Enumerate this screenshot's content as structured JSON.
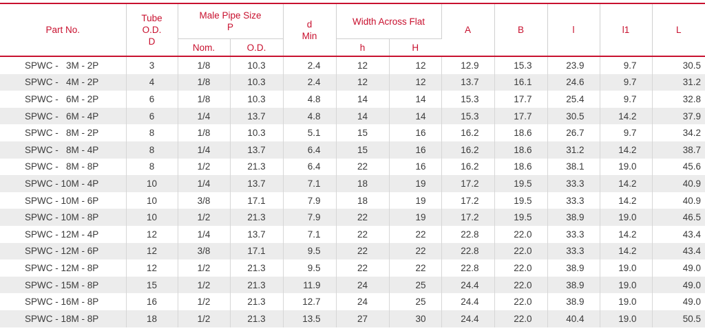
{
  "headers": {
    "part_no": "Part No.",
    "tube_od": [
      "Tube",
      "O.D.",
      "D"
    ],
    "male_pipe_size": [
      "Male Pipe Size",
      "P"
    ],
    "nom": "Nom.",
    "od": "O.D.",
    "d_min": [
      "d",
      "Min"
    ],
    "width_across_flat": "Width Across Flat",
    "h_small": "h",
    "h_large": "H",
    "a": "A",
    "b": "B",
    "l_small": "l",
    "l1": "l1",
    "l_large": "L"
  },
  "rows": [
    {
      "part": "SPWC -   3M - 2P",
      "tube_od": "3",
      "nom": "1/8",
      "od": "10.3",
      "d": "2.4",
      "h": "12",
      "H": "12",
      "A": "12.9",
      "B": "15.3",
      "l": "23.9",
      "l1": "9.7",
      "L": "30.5"
    },
    {
      "part": "SPWC -   4M - 2P",
      "tube_od": "4",
      "nom": "1/8",
      "od": "10.3",
      "d": "2.4",
      "h": "12",
      "H": "12",
      "A": "13.7",
      "B": "16.1",
      "l": "24.6",
      "l1": "9.7",
      "L": "31.2"
    },
    {
      "part": "SPWC -   6M - 2P",
      "tube_od": "6",
      "nom": "1/8",
      "od": "10.3",
      "d": "4.8",
      "h": "14",
      "H": "14",
      "A": "15.3",
      "B": "17.7",
      "l": "25.4",
      "l1": "9.7",
      "L": "32.8"
    },
    {
      "part": "SPWC -   6M - 4P",
      "tube_od": "6",
      "nom": "1/4",
      "od": "13.7",
      "d": "4.8",
      "h": "14",
      "H": "14",
      "A": "15.3",
      "B": "17.7",
      "l": "30.5",
      "l1": "14.2",
      "L": "37.9"
    },
    {
      "part": "SPWC -   8M - 2P",
      "tube_od": "8",
      "nom": "1/8",
      "od": "10.3",
      "d": "5.1",
      "h": "15",
      "H": "16",
      "A": "16.2",
      "B": "18.6",
      "l": "26.7",
      "l1": "9.7",
      "L": "34.2"
    },
    {
      "part": "SPWC -   8M - 4P",
      "tube_od": "8",
      "nom": "1/4",
      "od": "13.7",
      "d": "6.4",
      "h": "15",
      "H": "16",
      "A": "16.2",
      "B": "18.6",
      "l": "31.2",
      "l1": "14.2",
      "L": "38.7"
    },
    {
      "part": "SPWC -   8M - 8P",
      "tube_od": "8",
      "nom": "1/2",
      "od": "21.3",
      "d": "6.4",
      "h": "22",
      "H": "16",
      "A": "16.2",
      "B": "18.6",
      "l": "38.1",
      "l1": "19.0",
      "L": "45.6"
    },
    {
      "part": "SPWC - 10M - 4P",
      "tube_od": "10",
      "nom": "1/4",
      "od": "13.7",
      "d": "7.1",
      "h": "18",
      "H": "19",
      "A": "17.2",
      "B": "19.5",
      "l": "33.3",
      "l1": "14.2",
      "L": "40.9"
    },
    {
      "part": "SPWC - 10M - 6P",
      "tube_od": "10",
      "nom": "3/8",
      "od": "17.1",
      "d": "7.9",
      "h": "18",
      "H": "19",
      "A": "17.2",
      "B": "19.5",
      "l": "33.3",
      "l1": "14.2",
      "L": "40.9"
    },
    {
      "part": "SPWC - 10M - 8P",
      "tube_od": "10",
      "nom": "1/2",
      "od": "21.3",
      "d": "7.9",
      "h": "22",
      "H": "19",
      "A": "17.2",
      "B": "19.5",
      "l": "38.9",
      "l1": "19.0",
      "L": "46.5"
    },
    {
      "part": "SPWC - 12M - 4P",
      "tube_od": "12",
      "nom": "1/4",
      "od": "13.7",
      "d": "7.1",
      "h": "22",
      "H": "22",
      "A": "22.8",
      "B": "22.0",
      "l": "33.3",
      "l1": "14.2",
      "L": "43.4"
    },
    {
      "part": "SPWC - 12M - 6P",
      "tube_od": "12",
      "nom": "3/8",
      "od": "17.1",
      "d": "9.5",
      "h": "22",
      "H": "22",
      "A": "22.8",
      "B": "22.0",
      "l": "33.3",
      "l1": "14.2",
      "L": "43.4"
    },
    {
      "part": "SPWC - 12M - 8P",
      "tube_od": "12",
      "nom": "1/2",
      "od": "21.3",
      "d": "9.5",
      "h": "22",
      "H": "22",
      "A": "22.8",
      "B": "22.0",
      "l": "38.9",
      "l1": "19.0",
      "L": "49.0"
    },
    {
      "part": "SPWC - 15M - 8P",
      "tube_od": "15",
      "nom": "1/2",
      "od": "21.3",
      "d": "11.9",
      "h": "24",
      "H": "25",
      "A": "24.4",
      "B": "22.0",
      "l": "38.9",
      "l1": "19.0",
      "L": "49.0"
    },
    {
      "part": "SPWC - 16M - 8P",
      "tube_od": "16",
      "nom": "1/2",
      "od": "21.3",
      "d": "12.7",
      "h": "24",
      "H": "25",
      "A": "24.4",
      "B": "22.0",
      "l": "38.9",
      "l1": "19.0",
      "L": "49.0"
    },
    {
      "part": "SPWC - 18M - 8P",
      "tube_od": "18",
      "nom": "1/2",
      "od": "21.3",
      "d": "13.5",
      "h": "27",
      "H": "30",
      "A": "24.4",
      "B": "22.0",
      "l": "40.4",
      "l1": "19.0",
      "L": "50.5"
    }
  ]
}
